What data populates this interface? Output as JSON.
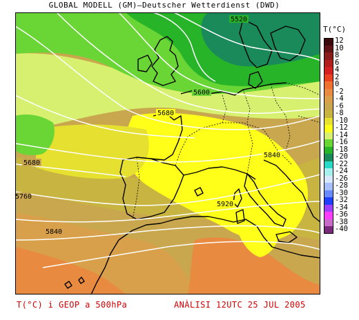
{
  "header": {
    "title": "GLOBAL MODELL (GM)—Deutscher Wetterdienst (DWD)"
  },
  "legend": {
    "title": "T(°C)",
    "entries": [
      {
        "label": "12",
        "color": "#3a0a0a"
      },
      {
        "label": "10",
        "color": "#5e1414"
      },
      {
        "label": "8",
        "color": "#8a1c1c"
      },
      {
        "label": "6",
        "color": "#b01e1e"
      },
      {
        "label": "4",
        "color": "#d42020"
      },
      {
        "label": "2",
        "color": "#e84020"
      },
      {
        "label": "0",
        "color": "#f07030"
      },
      {
        "label": "-2",
        "color": "#e88a40"
      },
      {
        "label": "-4",
        "color": "#d8a04a"
      },
      {
        "label": "-6",
        "color": "#c9a74e"
      },
      {
        "label": "-8",
        "color": "#c8b440"
      },
      {
        "label": "-10",
        "color": "#e6e030"
      },
      {
        "label": "-12",
        "color": "#ffff1a"
      },
      {
        "label": "-14",
        "color": "#d8f070"
      },
      {
        "label": "-16",
        "color": "#6ad636"
      },
      {
        "label": "-18",
        "color": "#28b428"
      },
      {
        "label": "-20",
        "color": "#1a8a5a"
      },
      {
        "label": "-22",
        "color": "#2ad8c8"
      },
      {
        "label": "-24",
        "color": "#a8f0f0"
      },
      {
        "label": "-26",
        "color": "#d8e8ff"
      },
      {
        "label": "-28",
        "color": "#a8c0ff"
      },
      {
        "label": "-30",
        "color": "#6a8aff"
      },
      {
        "label": "-32",
        "color": "#2040ff"
      },
      {
        "label": "-34",
        "color": "#a040ff"
      },
      {
        "label": "-36",
        "color": "#ff3cff"
      },
      {
        "label": "-38",
        "color": "#c86ac8"
      },
      {
        "label": "-40",
        "color": "#7a2a7a"
      }
    ]
  },
  "map": {
    "contour_labels": [
      "5520",
      "5600",
      "5680",
      "5680",
      "5760",
      "5840",
      "5840",
      "5920"
    ]
  },
  "footer": {
    "left": "T(°C) i GEOP a 500hPa",
    "right": "ANÀLISI 12UTC 25 JUL 2005"
  }
}
